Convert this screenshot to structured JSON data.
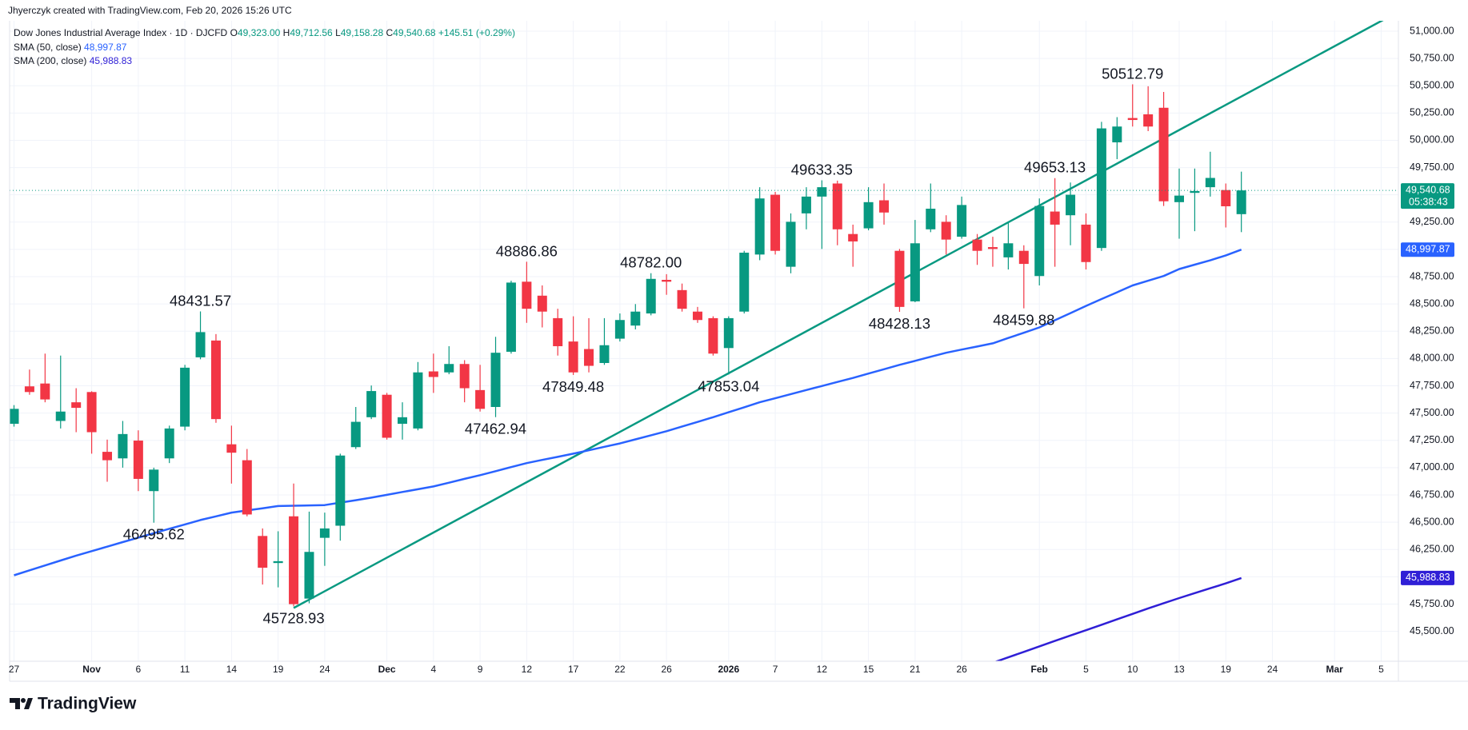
{
  "header": {
    "credit": "Jhyerczyk created with TradingView.com, Feb 20, 2026 15:26 UTC"
  },
  "legend": {
    "symbol": "Dow Jones Industrial Average Index · 1D · DJCFD",
    "ohlc": [
      {
        "key": "O",
        "value": "49,323.00"
      },
      {
        "key": "H",
        "value": "49,712.56"
      },
      {
        "key": "L",
        "value": "49,158.28"
      },
      {
        "key": "C",
        "value": "49,540.68"
      }
    ],
    "change": "+145.51 (+0.29%)"
  },
  "footer": {
    "logo": "TradingView"
  },
  "chart_data": {
    "type": "candlestick",
    "up_color": "#089981",
    "down_color": "#f23645",
    "grid": true,
    "categories": [
      "27",
      null,
      null,
      null,
      null,
      "Nov",
      null,
      null,
      "6",
      null,
      null,
      "11",
      null,
      null,
      "14",
      null,
      null,
      "19",
      null,
      null,
      "24",
      null,
      null,
      null,
      "Dec",
      null,
      null,
      "4",
      null,
      null,
      "9",
      null,
      null,
      "12",
      null,
      null,
      "17",
      null,
      null,
      "22",
      null,
      null,
      "26",
      null,
      null,
      null,
      "2026",
      null,
      null,
      "7",
      null,
      null,
      "12",
      null,
      null,
      "15",
      null,
      null,
      "21",
      null,
      null,
      "26",
      null,
      null,
      null,
      null,
      "Feb",
      null,
      null,
      "5",
      null,
      null,
      "10",
      null,
      null,
      "13",
      null,
      null,
      "19",
      null,
      null,
      "24",
      null,
      null,
      null,
      "Mar",
      null,
      null,
      "5"
    ],
    "open": [
      47402,
      47745,
      47771,
      47428,
      47599,
      47693,
      47145,
      47085,
      47248,
      46785,
      47085,
      47376,
      48011,
      48165,
      47214,
      47068,
      46374,
      46126,
      46554,
      45800,
      46357,
      46468,
      47188,
      47462,
      47668,
      47402,
      47359,
      47882,
      47873,
      47950,
      47711,
      47556,
      48062,
      48704,
      48576,
      48370,
      48156,
      48087,
      47959,
      48182,
      48302,
      48413,
      48721,
      48627,
      48430,
      48370,
      48096,
      48430,
      48953,
      49501,
      48841,
      49330,
      49484,
      49604,
      49141,
      49193,
      49450,
      48987,
      48524,
      49184,
      49253,
      49116,
      49090,
      49021,
      48927,
      48987,
      48756,
      49347,
      49313,
      49227,
      49013,
      49981,
      50204,
      50238,
      50298,
      49433,
      49518,
      49570,
      49544,
      49323,
      null,
      null,
      null,
      null,
      null,
      null,
      null,
      null,
      null
    ],
    "high": [
      47573,
      47899,
      48045,
      48027,
      47728,
      47700,
      47257,
      47428,
      47342,
      47000,
      47385,
      47942,
      48431.57,
      48224,
      47385,
      47171,
      46443,
      46417,
      46854,
      46597,
      46588,
      47128,
      47556,
      47753,
      47685,
      47599,
      47968,
      48045,
      48113,
      47985,
      47942,
      48199,
      48713,
      48886.86,
      48670,
      48456,
      48387,
      48370,
      48370,
      48413,
      48499,
      48782.0,
      48773,
      48687,
      48473,
      48387,
      48387,
      48987,
      49570,
      49527,
      49330,
      49570,
      49633.35,
      49630,
      49227,
      49570,
      49604,
      49004,
      49270,
      49604,
      49313,
      49484,
      49141,
      49116,
      49244,
      49038,
      49467,
      49653.13,
      49613,
      49330,
      50169,
      50212,
      50512.79,
      50495,
      50443,
      49741,
      49741,
      49895,
      49604,
      49712.56,
      null,
      null,
      null,
      null,
      null,
      null,
      null,
      null,
      null
    ],
    "low": [
      47376,
      47668,
      47599,
      47359,
      47325,
      47128,
      46871,
      47000,
      46785,
      46495.62,
      47042,
      47342,
      47993,
      47411,
      46854,
      46554,
      45929,
      45903,
      45728.93,
      45757,
      46100,
      46331,
      47171,
      47445,
      47257,
      47257,
      47342,
      47685,
      47856,
      47599,
      47514,
      47462.94,
      48045,
      48327,
      48285,
      48027,
      47849.48,
      47873,
      47942,
      48156,
      48267,
      48396,
      48584,
      48430,
      48327,
      48027,
      47853.04,
      48413,
      48901,
      48953,
      48781,
      49184,
      49004,
      49038,
      48841,
      49175,
      49227,
      48428.13,
      48516,
      49158,
      48953,
      49098,
      48858,
      48841,
      48816,
      48459.88,
      48670,
      48841,
      49038,
      48816,
      48987,
      49827,
      50126,
      50084,
      49398,
      49098,
      49167,
      49484,
      49201,
      49158.28,
      null,
      null,
      null,
      null,
      null,
      null,
      null,
      null,
      null
    ],
    "close": [
      47539,
      47693,
      47625,
      47514,
      47548,
      47325,
      47068,
      47308,
      46897,
      46982,
      47359,
      47916,
      48242,
      47445,
      47137,
      46571,
      46083,
      46143,
      45749,
      46228,
      46443,
      47111,
      47420,
      47702,
      47274,
      47462,
      47873,
      47831,
      47950,
      47728,
      47539,
      48053,
      48696,
      48456,
      48430,
      48113,
      47873,
      47933,
      48122,
      48353,
      48430,
      48730,
      48704,
      48456,
      48353,
      48045,
      48370,
      48970,
      49467,
      48987,
      49253,
      49484,
      49570,
      49184,
      49073,
      49433,
      49338,
      48473,
      49056,
      49373,
      49090,
      49407,
      48987,
      49004,
      49056,
      48867,
      49398,
      49227,
      49501,
      48884,
      50109,
      50126,
      50186,
      50126,
      49441,
      49493,
      49535,
      49655,
      49395.17,
      49540.68,
      null,
      null,
      null,
      null,
      null,
      null,
      null,
      null,
      null
    ],
    "last_close_label": "49,540.68",
    "countdown": "05:38:43",
    "series": [
      {
        "name": "SMA (50, close)",
        "color": "#2962ff",
        "last_label": "48,997.87",
        "values": [
          46014,
          46059,
          46104,
          46149,
          46194,
          46235,
          46276,
          46318,
          46359,
          46400,
          46440,
          46480,
          46520,
          46554,
          46588,
          46608,
          46628,
          46648,
          46651,
          46654,
          46657,
          46680,
          46702,
          46725,
          46751,
          46777,
          46802,
          46828,
          46862,
          46897,
          46931,
          46968,
          47005,
          47042,
          47071,
          47099,
          47128,
          47159,
          47191,
          47222,
          47259,
          47297,
          47334,
          47377,
          47419,
          47462,
          47508,
          47553,
          47599,
          47636,
          47674,
          47711,
          47748,
          47785,
          47822,
          47862,
          47902,
          47942,
          47979,
          48016,
          48053,
          48082,
          48110,
          48139,
          48188,
          48236,
          48285,
          48351,
          48416,
          48482,
          48545,
          48607,
          48670,
          48713,
          48756,
          48820,
          48860,
          48900,
          48945,
          48997.87,
          null,
          null,
          null,
          null,
          null,
          null,
          null,
          null,
          null
        ]
      },
      {
        "name": "SMA (200, close)",
        "color": "#2f1fd6",
        "last_label": "45,988.83",
        "values": [
          null,
          null,
          null,
          null,
          null,
          null,
          null,
          null,
          null,
          null,
          null,
          null,
          null,
          null,
          null,
          null,
          null,
          null,
          null,
          null,
          null,
          null,
          null,
          null,
          null,
          null,
          null,
          null,
          null,
          null,
          null,
          null,
          null,
          null,
          null,
          null,
          null,
          null,
          null,
          null,
          null,
          null,
          null,
          null,
          null,
          null,
          null,
          null,
          null,
          null,
          null,
          null,
          null,
          null,
          null,
          null,
          null,
          null,
          null,
          null,
          null,
          null,
          null,
          45212,
          45262,
          45312,
          45362,
          45412,
          45462,
          45510,
          45560,
          45610,
          45660,
          45710,
          45758,
          45805,
          45850,
          45895,
          45940,
          45988.83,
          null,
          null,
          null,
          null,
          null,
          null,
          null,
          null,
          null
        ]
      }
    ],
    "trendline": {
      "x": [
        18,
        88.25
      ],
      "y": [
        45714,
        51112
      ],
      "color": "#089981"
    },
    "annotations": [
      {
        "text": "48431.57",
        "index": 12,
        "at": "high"
      },
      {
        "text": "46495.62",
        "index": 9,
        "at": "low"
      },
      {
        "text": "45728.93",
        "index": 18,
        "at": "low"
      },
      {
        "text": "48886.86",
        "index": 33,
        "at": "high"
      },
      {
        "text": "47462.94",
        "index": 31,
        "at": "low"
      },
      {
        "text": "47849.48",
        "index": 36,
        "at": "low"
      },
      {
        "text": "48782.00",
        "index": 41,
        "at": "high"
      },
      {
        "text": "47853.04",
        "index": 46,
        "at": "low"
      },
      {
        "text": "49633.35",
        "index": 52,
        "at": "high"
      },
      {
        "text": "48428.13",
        "index": 57,
        "at": "low"
      },
      {
        "text": "48459.88",
        "index": 65,
        "at": "low"
      },
      {
        "text": "49653.13",
        "index": 67,
        "at": "high"
      },
      {
        "text": "50512.79",
        "index": 72,
        "at": "high"
      }
    ],
    "ylim": [
      45226,
      51095
    ],
    "yticks": [
      {
        "value": 45500,
        "label": "45,500.00"
      },
      {
        "value": 45750,
        "label": "45,750.00"
      },
      {
        "value": 46000,
        "label": "46,000.00"
      },
      {
        "value": 46250,
        "label": "46,250.00"
      },
      {
        "value": 46500,
        "label": "46,500.00"
      },
      {
        "value": 46750,
        "label": "46,750.00"
      },
      {
        "value": 47000,
        "label": "47,000.00"
      },
      {
        "value": 47250,
        "label": "47,250.00"
      },
      {
        "value": 47500,
        "label": "47,500.00"
      },
      {
        "value": 47750,
        "label": "47,750.00"
      },
      {
        "value": 48000,
        "label": "48,000.00"
      },
      {
        "value": 48250,
        "label": "48,250.00"
      },
      {
        "value": 48500,
        "label": "48,500.00"
      },
      {
        "value": 48750,
        "label": "48,750.00"
      },
      {
        "value": 49000,
        "label": "49,000.00"
      },
      {
        "value": 49250,
        "label": "49,250.00"
      },
      {
        "value": 49500,
        "label": "49,500.00"
      },
      {
        "value": 49750,
        "label": "49,750.00"
      },
      {
        "value": 50000,
        "label": "50,000.00"
      },
      {
        "value": 50250,
        "label": "50,250.00"
      },
      {
        "value": 50500,
        "label": "50,500.00"
      },
      {
        "value": 50750,
        "label": "50,750.00"
      },
      {
        "value": 51000,
        "label": "51,000.00"
      }
    ]
  }
}
